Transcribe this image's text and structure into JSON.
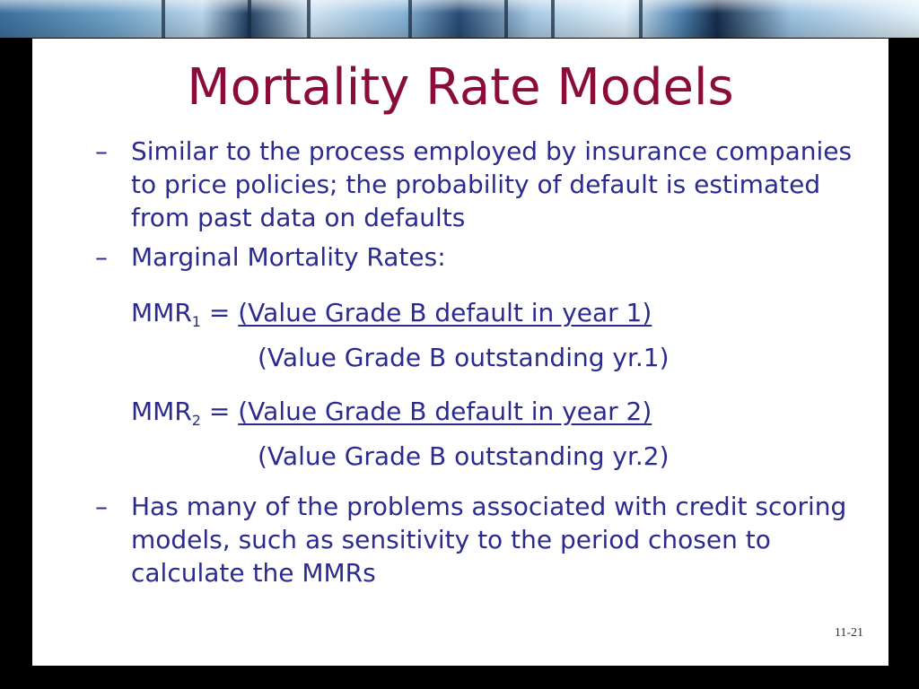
{
  "slide": {
    "title": "Mortality Rate Models",
    "bullets": [
      {
        "marker": "–",
        "text": "Similar to the process employed by insurance companies to price policies; the probability of default is estimated from past data on defaults"
      },
      {
        "marker": "–",
        "text": "Marginal Mortality Rates:"
      },
      {
        "marker": "–",
        "text": "Has many of the problems associated with credit scoring models, such as sensitivity to the period chosen to calculate the MMRs"
      }
    ],
    "formulas": [
      {
        "lhs": "MMR",
        "sub": "1",
        "equals": "=",
        "numerator": "(Value Grade B default in year 1)",
        "denominator": "(Value Grade B outstanding yr.1)"
      },
      {
        "lhs": "MMR",
        "sub": "2",
        "equals": "=",
        "numerator": "(Value Grade B default in year 2)",
        "denominator": "(Value Grade B outstanding yr.2)"
      }
    ],
    "page_number": "11-21"
  },
  "colors": {
    "title": "#8a0c3a",
    "body_text": "#2b2b8f",
    "background": "#000000",
    "slide_background": "#ffffff"
  }
}
